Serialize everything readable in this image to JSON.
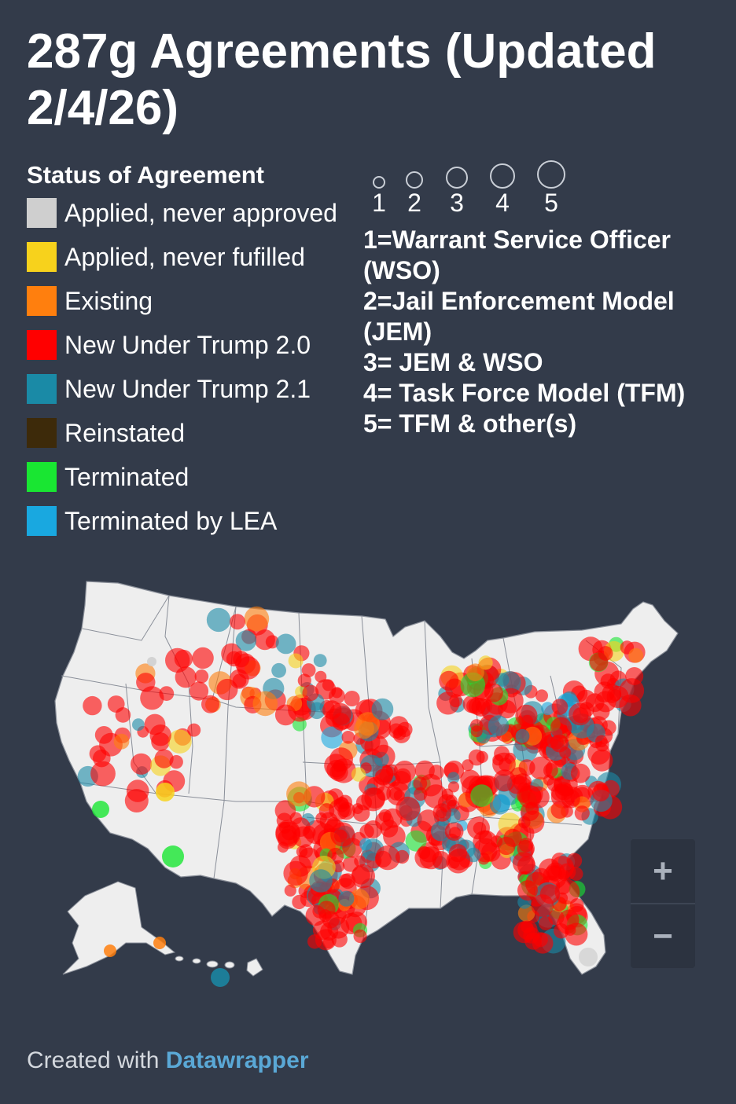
{
  "title": "287g Agreements (Updated 2/4/26)",
  "legend_status": {
    "heading": "Status of Agreement",
    "items": [
      {
        "label": "Applied, never approved",
        "color": "#cfcfcf"
      },
      {
        "label": "Applied, never fufilled",
        "color": "#f7d21c"
      },
      {
        "label": "Existing",
        "color": "#ff7f0e"
      },
      {
        "label": "New Under Trump 2.0",
        "color": "#ff0000"
      },
      {
        "label": "New Under Trump 2.1",
        "color": "#1a8aa6"
      },
      {
        "label": "Reinstated",
        "color": "#3d2a0a"
      },
      {
        "label": "Terminated",
        "color": "#19e632"
      },
      {
        "label": "Terminated by LEA",
        "color": "#19a8e0"
      }
    ]
  },
  "legend_size": {
    "levels": [
      "1",
      "2",
      "3",
      "4",
      "5"
    ],
    "definitions": [
      "1=Warrant Service Officer",
      "(WSO)",
      "2=Jail Enforcement Model",
      "(JEM)",
      "3= JEM & WSO",
      "4= Task Force Model (TFM)",
      "5= TFM & other(s)"
    ]
  },
  "map": {
    "land_color": "#eeeeee",
    "border_color": "#8a8f99",
    "zoom_in": "+",
    "zoom_out": "−"
  },
  "footer": {
    "prefix": "Created with",
    "brand": "Datawrapper"
  }
}
